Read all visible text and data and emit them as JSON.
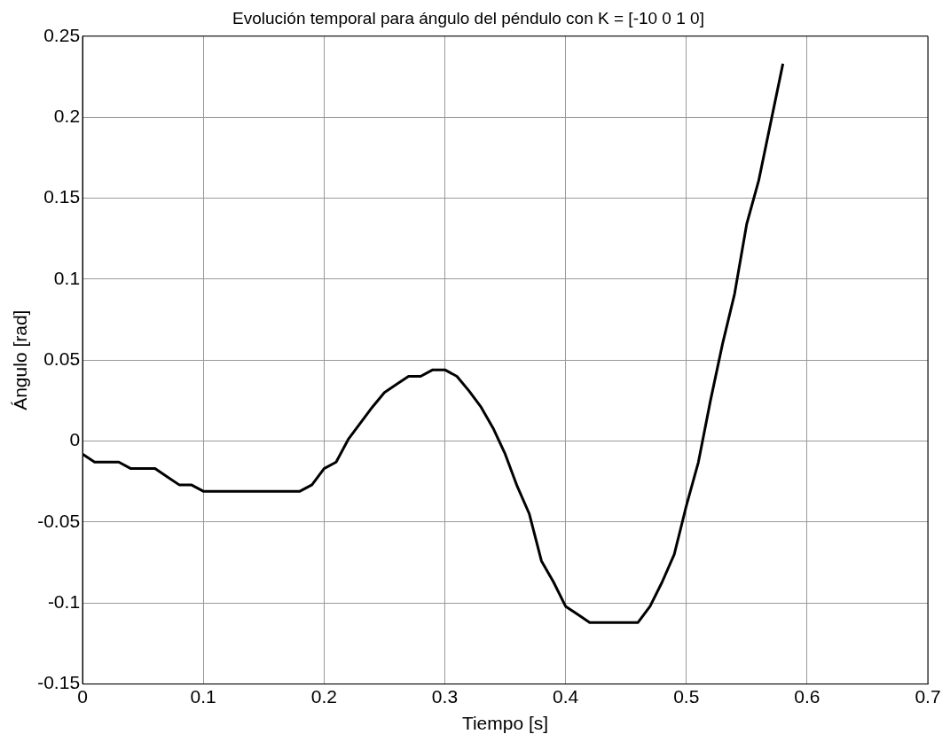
{
  "chart_data": {
    "type": "line",
    "title": "Evolución temporal para ángulo del péndulo con K = [-10 0 1 0]",
    "xlabel": "Tiempo [s]",
    "ylabel": "Ángulo [rad]",
    "x": [
      0,
      0.01,
      0.02,
      0.03,
      0.04,
      0.05,
      0.06,
      0.07,
      0.08,
      0.09,
      0.1,
      0.11,
      0.12,
      0.13,
      0.14,
      0.15,
      0.16,
      0.17,
      0.18,
      0.19,
      0.2,
      0.21,
      0.22,
      0.23,
      0.24,
      0.25,
      0.26,
      0.27,
      0.28,
      0.29,
      0.3,
      0.31,
      0.32,
      0.33,
      0.34,
      0.35,
      0.36,
      0.37,
      0.38,
      0.39,
      0.4,
      0.41,
      0.42,
      0.43,
      0.44,
      0.45,
      0.46,
      0.47,
      0.48,
      0.49,
      0.5,
      0.51,
      0.52,
      0.53,
      0.54,
      0.55,
      0.56,
      0.57,
      0.58
    ],
    "series": [
      {
        "color": "#000000",
        "values": [
          -0.008,
          -0.013,
          -0.013,
          -0.013,
          -0.017,
          -0.017,
          -0.017,
          -0.022,
          -0.027,
          -0.027,
          -0.031,
          -0.031,
          -0.031,
          -0.031,
          -0.031,
          -0.031,
          -0.031,
          -0.031,
          -0.031,
          -0.027,
          -0.017,
          -0.013,
          0.001,
          0.011,
          0.021,
          0.03,
          0.035,
          0.04,
          0.04,
          0.044,
          0.044,
          0.04,
          0.031,
          0.021,
          0.008,
          -0.008,
          -0.028,
          -0.045,
          -0.074,
          -0.087,
          -0.102,
          -0.107,
          -0.112,
          -0.112,
          -0.112,
          -0.112,
          -0.112,
          -0.102,
          -0.087,
          -0.07,
          -0.04,
          -0.013,
          0.025,
          0.06,
          0.091,
          0.134,
          0.161,
          0.197,
          0.233
        ]
      }
    ],
    "xlim": [
      0,
      0.7
    ],
    "xticks": [
      0,
      0.1,
      0.2,
      0.3,
      0.4,
      0.5,
      0.6,
      0.7
    ],
    "ylim": [
      -0.15,
      0.25
    ],
    "yticks": [
      -0.15,
      -0.1,
      -0.05,
      0,
      0.05,
      0.1,
      0.15,
      0.2,
      0.25
    ],
    "grid": true,
    "legend": false,
    "marker": "none",
    "line_style": "solid"
  }
}
